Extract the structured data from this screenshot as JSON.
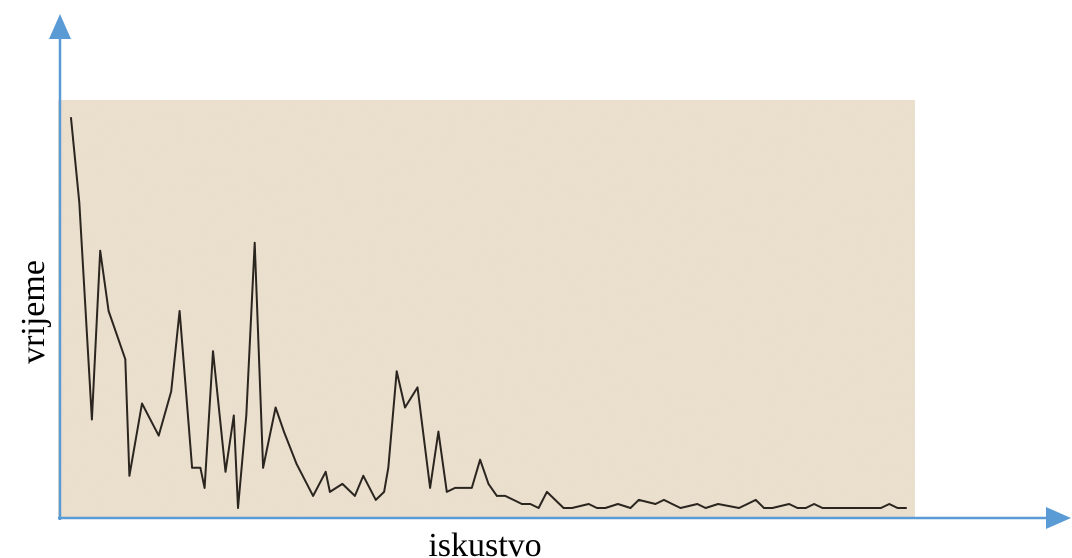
{
  "chart_data": {
    "type": "line",
    "title": "",
    "xlabel": "iskustvo",
    "ylabel": "vrijeme",
    "x_tick_labels": [],
    "y_tick_labels": [],
    "grid": false,
    "legend": "none",
    "xlim": [
      0,
      100
    ],
    "ylim": [
      0,
      100
    ],
    "series": [
      {
        "x": [
          0,
          1,
          2.5,
          3.5,
          4.5,
          6.5,
          7,
          8.5,
          10.5,
          12,
          13,
          14.5,
          15.5,
          16,
          17,
          18.5,
          19.5,
          20,
          21,
          22,
          23,
          24.5,
          25.5,
          27,
          29,
          30.5,
          31,
          32.5,
          34,
          35,
          36.5,
          37.5,
          38,
          39,
          40,
          41.5,
          43,
          44,
          45,
          46,
          47,
          48,
          49,
          50,
          51,
          52,
          53,
          54,
          55,
          56,
          57,
          59,
          60,
          62,
          63,
          64,
          65.5,
          67,
          68,
          70,
          71,
          72,
          73,
          75,
          76,
          77.5,
          80,
          81,
          82,
          83,
          84,
          86,
          87,
          88,
          89,
          90,
          91,
          92,
          93,
          94,
          95,
          96,
          97,
          98,
          99,
          100
        ],
        "y": [
          98,
          77,
          23,
          65,
          50,
          38,
          9,
          27,
          19,
          30,
          50,
          11,
          11,
          6,
          40,
          10,
          24,
          1,
          24,
          67,
          11,
          26,
          20,
          12,
          4,
          10,
          5,
          7,
          4,
          9,
          3,
          5,
          11,
          35,
          26,
          31,
          6,
          20,
          5,
          6,
          6,
          6,
          13,
          7,
          4,
          4,
          3,
          2,
          2,
          1,
          5,
          1,
          1,
          2,
          1,
          1,
          2,
          1,
          3,
          2,
          3,
          2,
          1,
          2,
          1,
          2,
          1,
          2,
          3,
          1,
          1,
          2,
          1,
          1,
          2,
          1,
          1,
          1,
          1,
          1,
          1,
          1,
          1,
          2,
          1,
          1
        ]
      }
    ]
  }
}
